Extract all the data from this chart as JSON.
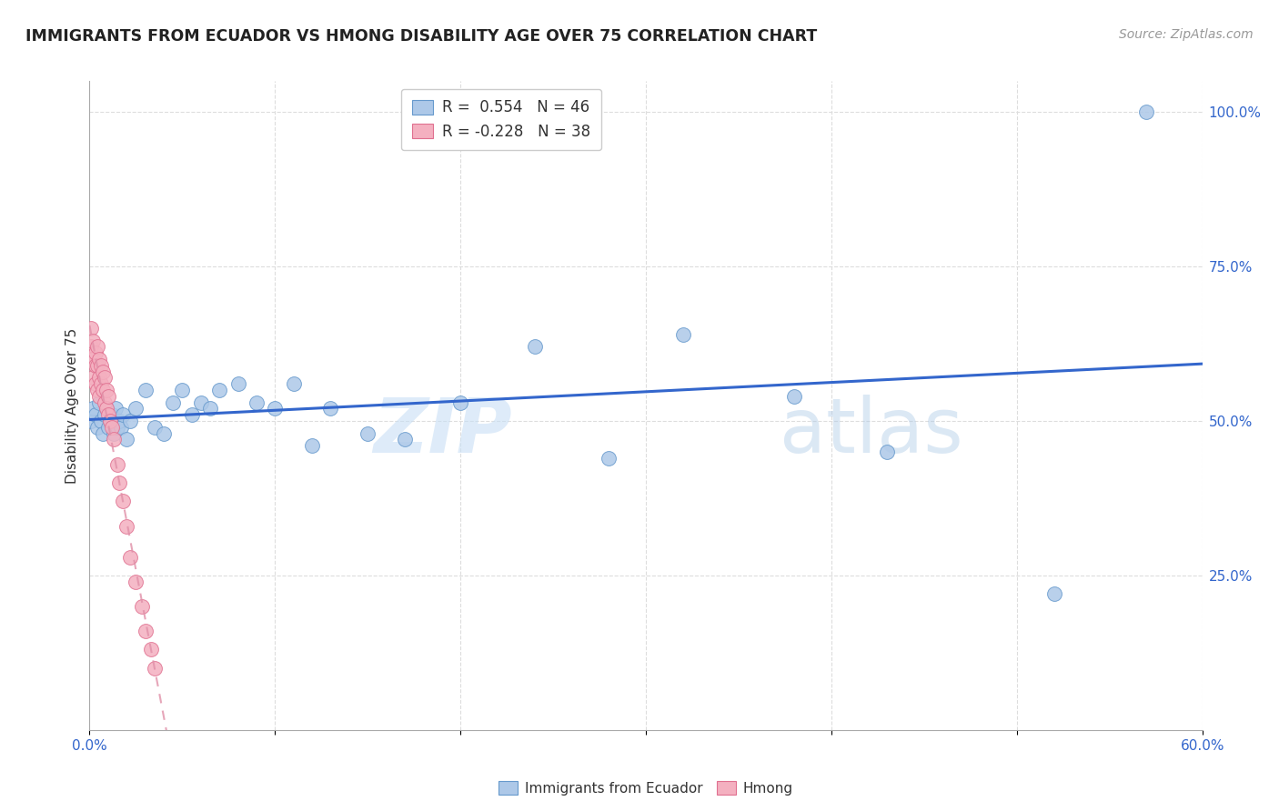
{
  "title": "IMMIGRANTS FROM ECUADOR VS HMONG DISABILITY AGE OVER 75 CORRELATION CHART",
  "source": "Source: ZipAtlas.com",
  "ylabel_label": "Disability Age Over 75",
  "xlim": [
    0.0,
    0.6
  ],
  "ylim": [
    0.0,
    1.05
  ],
  "ecuador_color": "#adc8e8",
  "ecuador_edge": "#6699cc",
  "hmong_color": "#f4b0c0",
  "hmong_edge": "#e07090",
  "trend_blue": "#3366cc",
  "trend_pink": "#e090a8",
  "legend_r_ecuador": "R =  0.554",
  "legend_n_ecuador": "N = 46",
  "legend_r_hmong": "R = -0.228",
  "legend_n_hmong": "N = 38",
  "ecuador_x": [
    0.001,
    0.002,
    0.003,
    0.004,
    0.005,
    0.006,
    0.007,
    0.008,
    0.009,
    0.01,
    0.011,
    0.012,
    0.013,
    0.014,
    0.015,
    0.016,
    0.017,
    0.018,
    0.02,
    0.022,
    0.025,
    0.03,
    0.035,
    0.04,
    0.045,
    0.05,
    0.055,
    0.06,
    0.065,
    0.07,
    0.08,
    0.09,
    0.1,
    0.11,
    0.12,
    0.13,
    0.15,
    0.17,
    0.2,
    0.24,
    0.28,
    0.32,
    0.38,
    0.43,
    0.52,
    0.57
  ],
  "ecuador_y": [
    0.5,
    0.52,
    0.51,
    0.49,
    0.53,
    0.5,
    0.48,
    0.51,
    0.52,
    0.49,
    0.5,
    0.51,
    0.48,
    0.52,
    0.49,
    0.5,
    0.49,
    0.51,
    0.47,
    0.5,
    0.52,
    0.55,
    0.49,
    0.48,
    0.53,
    0.55,
    0.51,
    0.53,
    0.52,
    0.55,
    0.56,
    0.53,
    0.52,
    0.56,
    0.46,
    0.52,
    0.48,
    0.47,
    0.53,
    0.62,
    0.44,
    0.64,
    0.54,
    0.45,
    0.22,
    1.0
  ],
  "hmong_x": [
    0.001,
    0.001,
    0.001,
    0.002,
    0.002,
    0.002,
    0.003,
    0.003,
    0.003,
    0.004,
    0.004,
    0.004,
    0.005,
    0.005,
    0.005,
    0.006,
    0.006,
    0.007,
    0.007,
    0.008,
    0.008,
    0.009,
    0.009,
    0.01,
    0.01,
    0.011,
    0.012,
    0.013,
    0.015,
    0.016,
    0.018,
    0.02,
    0.022,
    0.025,
    0.028,
    0.03,
    0.033,
    0.035
  ],
  "hmong_y": [
    0.65,
    0.62,
    0.6,
    0.63,
    0.6,
    0.57,
    0.61,
    0.59,
    0.56,
    0.62,
    0.59,
    0.55,
    0.6,
    0.57,
    0.54,
    0.59,
    0.56,
    0.58,
    0.55,
    0.57,
    0.53,
    0.55,
    0.52,
    0.54,
    0.51,
    0.5,
    0.49,
    0.47,
    0.43,
    0.4,
    0.37,
    0.33,
    0.28,
    0.24,
    0.2,
    0.16,
    0.13,
    0.1
  ],
  "watermark_zip": "ZIP",
  "watermark_atlas": "atlas",
  "background_color": "#ffffff",
  "grid_color": "#dddddd"
}
